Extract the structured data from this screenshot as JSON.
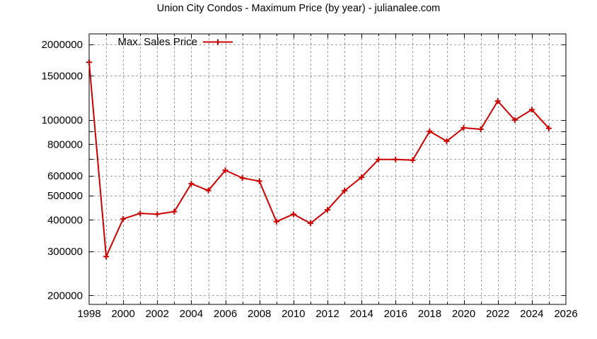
{
  "chart_data": {
    "type": "line",
    "title": "Union City Condos - Maximum Price (by year) - julianalee.com",
    "xlabel": "",
    "ylabel": "",
    "yscale": "log",
    "xlim": [
      1998,
      2026
    ],
    "ylim": [
      185000,
      2250000
    ],
    "grid": true,
    "legend_position": "top-left",
    "x_ticks": [
      1998,
      2000,
      2002,
      2004,
      2006,
      2008,
      2010,
      2012,
      2014,
      2016,
      2018,
      2020,
      2022,
      2024,
      2026
    ],
    "y_tick_labels": [
      {
        "value": 200000,
        "label": "200000"
      },
      {
        "value": 300000,
        "label": "300000"
      },
      {
        "value": 400000,
        "label": "400000"
      },
      {
        "value": 500000,
        "label": "500000"
      },
      {
        "value": 600000,
        "label": "600000"
      },
      {
        "value": 800000,
        "label": "800000"
      },
      {
        "value": 1000000,
        "label": "1000000"
      },
      {
        "value": 1500000,
        "label": "1500000"
      },
      {
        "value": 2000000,
        "label": "2000000"
      }
    ],
    "y_minor_gridlines": [
      700000,
      900000
    ],
    "series": [
      {
        "name": "Max. Sales Price",
        "color": "#cc0000",
        "marker": "plus",
        "x": [
          1998,
          1999,
          2000,
          2001,
          2002,
          2003,
          2004,
          2005,
          2006,
          2007,
          2008,
          2009,
          2010,
          2011,
          2012,
          2013,
          2014,
          2015,
          2016,
          2017,
          2018,
          2019,
          2020,
          2021,
          2022,
          2023,
          2024,
          2025
        ],
        "values": [
          1700000,
          286000,
          404000,
          425000,
          422000,
          432000,
          558000,
          524000,
          631000,
          588000,
          571000,
          394000,
          422000,
          388000,
          439000,
          523000,
          592000,
          697000,
          697000,
          692000,
          902000,
          824000,
          931000,
          919000,
          1190000,
          1000000,
          1100000,
          927000
        ]
      }
    ]
  },
  "colors": {
    "series": "#cc0000",
    "grid": "#a0a0a0",
    "axis": "#000000"
  }
}
